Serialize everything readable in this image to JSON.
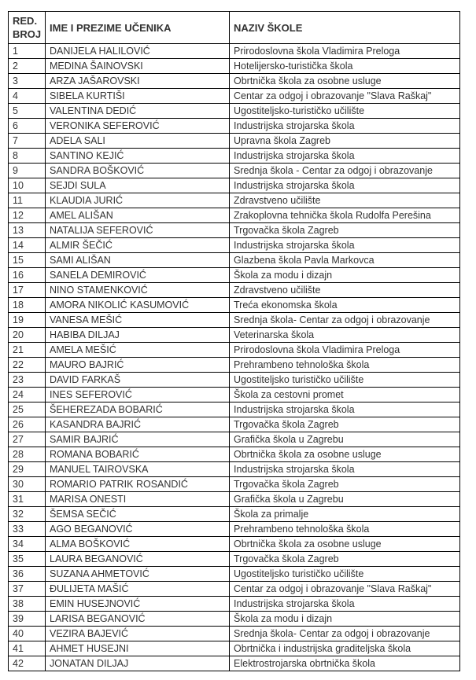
{
  "headers": [
    "RED. BROJ",
    "IME I PREZIME UČENIKA",
    "NAZIV ŠKOLE"
  ],
  "rows": [
    [
      "1",
      "DANIJELA HALILOVIĆ",
      "Prirodoslovna škola Vladimira Preloga"
    ],
    [
      "2",
      "MEDINA ŠAINOVSKI",
      "Hotelijersko-turistička škola"
    ],
    [
      "3",
      "ARZA JAŠAROVSKI",
      "Obrtnička škola za osobne usluge"
    ],
    [
      "4",
      "SIBELA KURTIŠI",
      "Centar za odgoj i obrazovanje \"Slava Raškaj\""
    ],
    [
      "5",
      "VALENTINA DEDIĆ",
      "Ugostiteljsko-turističko učilište"
    ],
    [
      "6",
      "VERONIKA SEFEROVIĆ",
      "Industrijska strojarska škola"
    ],
    [
      "7",
      "ADELA SALI",
      "Upravna škola Zagreb"
    ],
    [
      "8",
      "SANTINO KEJIĆ",
      "Industrijska strojarska škola"
    ],
    [
      "9",
      "SANDRA BOŠKOVIĆ",
      "Srednja škola - Centar za odgoj i obrazovanje"
    ],
    [
      "10",
      "SEJDI SULA",
      "Industrijska strojarska škola"
    ],
    [
      "11",
      "KLAUDIA JURIĆ",
      "Zdravstveno učilište"
    ],
    [
      "12",
      "AMEL ALIŠAN",
      "Zrakoplovna tehnička škola Rudolfa Perešina"
    ],
    [
      "13",
      "NATALIJA SEFEROVIĆ",
      "Trgovačka škola Zagreb"
    ],
    [
      "14",
      "ALMIR ŠEČIĆ",
      "Industrijska strojarska škola"
    ],
    [
      "15",
      "SAMI ALIŠAN",
      "Glazbena škola Pavla Markovca"
    ],
    [
      "16",
      "SANELA DEMIROVIĆ",
      "Škola za modu i dizajn"
    ],
    [
      "17",
      "NINO STAMENKOVIĆ",
      "Zdravstveno učilište"
    ],
    [
      "18",
      "AMORA NIKOLIĆ KASUMOVIĆ",
      "Treća ekonomska škola"
    ],
    [
      "19",
      "VANESA MEŠIĆ",
      "Srednja škola- Centar za odgoj i obrazovanje"
    ],
    [
      "20",
      "HABIBA DILJAJ",
      "Veterinarska škola"
    ],
    [
      "21",
      "AMELA MEŠIĆ",
      "Prirodoslovna škola Vladimira Preloga"
    ],
    [
      "22",
      "MAURO BAJRIĆ",
      "Prehrambeno tehnološka škola"
    ],
    [
      "23",
      "DAVID FARKAŠ",
      "Ugostiteljsko turističko učilište"
    ],
    [
      "24",
      "INES SEFEROVIĆ",
      "Škola za cestovni promet"
    ],
    [
      "25",
      "ŠEHEREZADA BOBARIĆ",
      "Industrijska strojarska škola"
    ],
    [
      "26",
      "KASANDRA BAJRIĆ",
      "Trgovačka škola Zagreb"
    ],
    [
      "27",
      "SAMIR BAJRIĆ",
      "Grafička škola u Zagrebu"
    ],
    [
      "28",
      "ROMANA BOBARIĆ",
      "Obrtnička škola za osobne usluge"
    ],
    [
      "29",
      "MANUEL TAIROVSKA",
      "Industrijska strojarska škola"
    ],
    [
      "30",
      "ROMARIO PATRIK ROSANDIĆ",
      "Trgovačka škola Zagreb"
    ],
    [
      "31",
      "MARISA ONESTI",
      "Grafička škola u Zagrebu"
    ],
    [
      "32",
      "ŠEMSA SEČIĆ",
      "Škola za primalje"
    ],
    [
      "33",
      "AGO BEGANOVIĆ",
      "Prehrambeno tehnološka škola"
    ],
    [
      "34",
      "ALMA BOŠKOVIĆ",
      "Obrtnička škola za osobne usluge"
    ],
    [
      "35",
      "LAURA BEGANOVIĆ",
      "Trgovačka škola Zagreb"
    ],
    [
      "36",
      "SUZANA AHMETOVIĆ",
      "Ugostiteljsko turističko učilište"
    ],
    [
      "37",
      "ĐULIJETA MAŠIĆ",
      "Centar za odgoj i obrazovanje \"Slava Raškaj\""
    ],
    [
      "38",
      "EMIN HUSEJNOVIĆ",
      "Industrijska strojarska škola"
    ],
    [
      "39",
      "LARISA BEGANOVIĆ",
      "Škola za modu i dizajn"
    ],
    [
      "40",
      "VEZIRA BAJEVIĆ",
      "Srednja škola- Centar za odgoj i obrazovanje"
    ],
    [
      "41",
      "AHMET HUSEJNI",
      "Obrtnička i industrijska graditeljska škola"
    ],
    [
      "42",
      "JONATAN DILJAJ",
      "Elektrostrojarska obrtnička škola"
    ]
  ]
}
